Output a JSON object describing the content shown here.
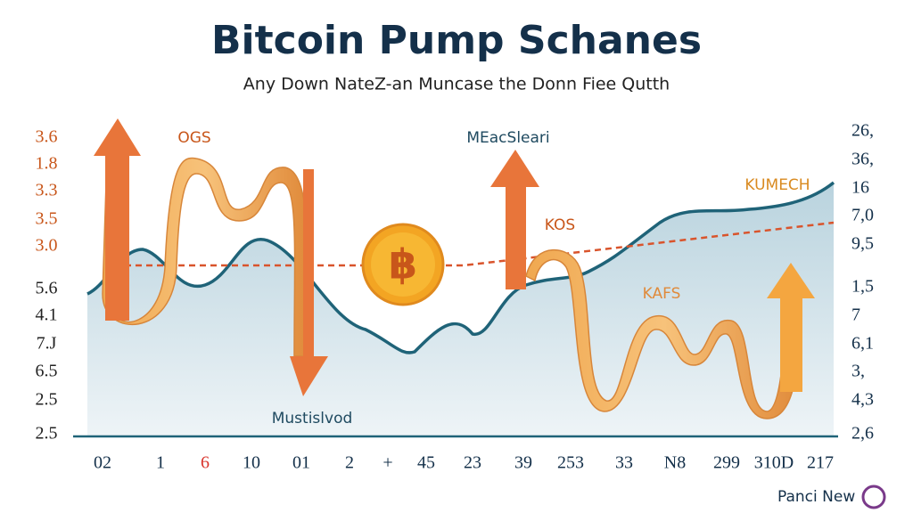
{
  "header": {
    "title": "Bitcoin Pump Schanes",
    "subtitle": "Any Down NateZ-an Muncase the Donn Fiee Qutth"
  },
  "left_labels": [
    "3.6",
    "1.8",
    "3.3",
    "3.5",
    "3.0",
    "5.6",
    "4.1",
    "7.J",
    "6.5",
    "2.5",
    "2.5"
  ],
  "right_labels": [
    "26,",
    "36,",
    "16",
    "7,0",
    "9,5",
    "1,5",
    "7",
    "6,1",
    "3,",
    "4,3",
    "2,6"
  ],
  "bottom_labels": [
    "02",
    "1",
    "6",
    "10",
    "01",
    "2",
    "+",
    "45",
    "23",
    "39",
    "253",
    "33",
    "N8",
    "299",
    "310D",
    "217"
  ],
  "annotations": [
    "OGS",
    "MEacSleari",
    "KOS",
    "KUMECH",
    "KAFS",
    "Mustislvod"
  ],
  "footer": {
    "brand": "Panci New"
  }
}
